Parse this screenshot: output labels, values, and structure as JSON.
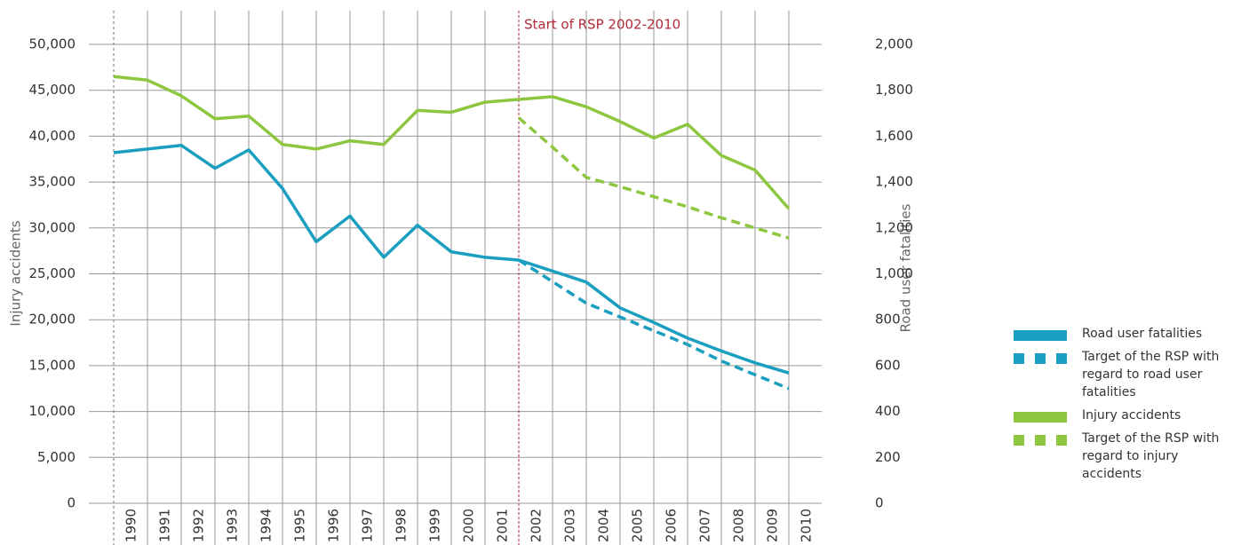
{
  "chart_data": {
    "type": "line",
    "categories": [
      "1990",
      "1991",
      "1992",
      "1993",
      "1994",
      "1995",
      "1996",
      "1997",
      "1998",
      "1999",
      "2000",
      "2001",
      "2002",
      "2003",
      "2004",
      "2005",
      "2006",
      "2007",
      "2008",
      "2009",
      "2010"
    ],
    "ylabel": "Injury accidents",
    "y2label": "Road user fatalities",
    "annotation": "Start of RSP 2002-2010",
    "ylim": [
      0,
      50000
    ],
    "yticks": [
      0,
      {
        "value": 5000,
        "label": "5,000"
      },
      {
        "value": 10000,
        "label": "10,000"
      },
      {
        "value": 15000,
        "label": "15,000"
      },
      {
        "value": 20000,
        "label": "20,000"
      },
      {
        "value": 25000,
        "label": "25,000"
      },
      {
        "value": 30000,
        "label": "30,000"
      },
      {
        "value": 35000,
        "label": "35,000"
      },
      {
        "value": 40000,
        "label": "40,000"
      },
      {
        "value": 45000,
        "label": "45,000"
      },
      {
        "value": 50000,
        "label": "50,000"
      }
    ],
    "y2lim": [
      0,
      2000
    ],
    "y2ticks": [
      0,
      200,
      400,
      600,
      800,
      {
        "value": 1000,
        "label": "1,000"
      },
      {
        "value": 1200,
        "label": "1,200"
      },
      {
        "value": 1400,
        "label": "1,400"
      },
      {
        "value": 1600,
        "label": "1,600"
      },
      {
        "value": 1800,
        "label": "1,800"
      },
      {
        "value": 2000,
        "label": "2,000"
      }
    ],
    "grid": true,
    "legend": "right",
    "series": [
      {
        "name": "Road user fatalities",
        "color": "#1a9fc0",
        "style": "solid",
        "axis": "y2",
        "values": [
          1528,
          1544,
          1560,
          1460,
          1540,
          1372,
          1140,
          1252,
          1072,
          1212,
          1096,
          1072,
          1060,
          1012,
          964,
          852,
          788,
          720,
          664,
          612,
          568
        ]
      },
      {
        "name": "Target of the RSP with regard to road user fatalities",
        "color": "#1a9fc0",
        "style": "dashed",
        "axis": "y2",
        "values": [
          null,
          null,
          null,
          null,
          null,
          null,
          null,
          null,
          null,
          null,
          null,
          null,
          1060,
          966,
          872,
          812,
          752,
          692,
          620,
          560,
          500
        ]
      },
      {
        "name": "Injury accidents",
        "color": "#8dc63f",
        "style": "solid",
        "values": [
          46500,
          46100,
          44400,
          41900,
          42200,
          39100,
          38600,
          39500,
          39100,
          42800,
          42600,
          43700,
          44000,
          44300,
          43200,
          41600,
          39800,
          41300,
          37900,
          36300,
          32100
        ]
      },
      {
        "name": "Target of the RSP with regard to injury accidents",
        "color": "#8dc63f",
        "style": "dashed",
        "values": [
          null,
          null,
          null,
          null,
          null,
          null,
          null,
          null,
          null,
          null,
          null,
          null,
          42000,
          38800,
          35500,
          34500,
          33400,
          32300,
          31100,
          30000,
          28900
        ]
      }
    ]
  }
}
